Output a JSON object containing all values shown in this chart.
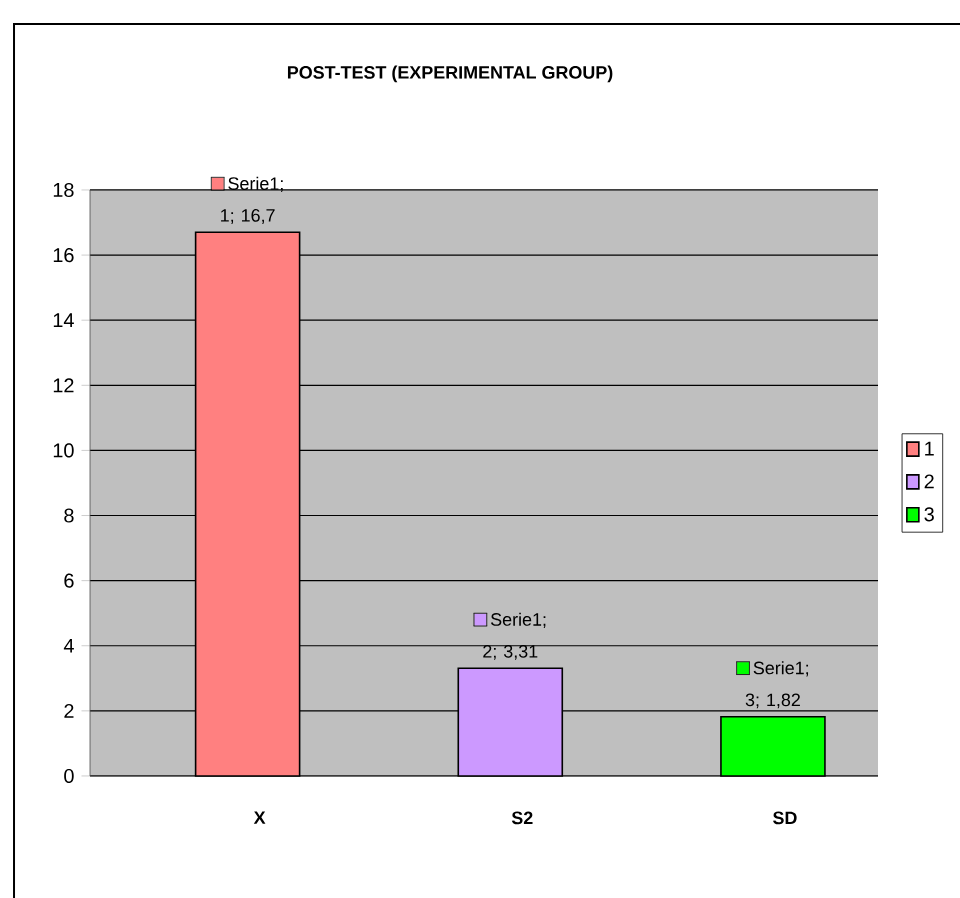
{
  "chart_data": {
    "type": "bar",
    "title": "POST-TEST (EXPERIMENTAL GROUP)",
    "categories": [
      "X",
      "S2",
      "SD"
    ],
    "series": [
      {
        "name": "1",
        "color": "#ff8080",
        "values": [
          16.7,
          null,
          null
        ],
        "value_labels": [
          "Serie1; 1; 16,7",
          null,
          null
        ]
      },
      {
        "name": "2",
        "color": "#cc99ff",
        "values": [
          null,
          3.31,
          null
        ],
        "value_labels": [
          null,
          "Serie1; 2; 3,31",
          null
        ]
      },
      {
        "name": "3",
        "color": "#00ff00",
        "values": [
          null,
          null,
          1.82
        ],
        "value_labels": [
          null,
          null,
          "Serie1; 3; 1,82"
        ]
      }
    ],
    "ylim": [
      0,
      18
    ],
    "yticks": [
      0,
      2,
      4,
      6,
      8,
      10,
      12,
      14,
      16,
      18
    ],
    "grid": "y",
    "legend": "right"
  }
}
